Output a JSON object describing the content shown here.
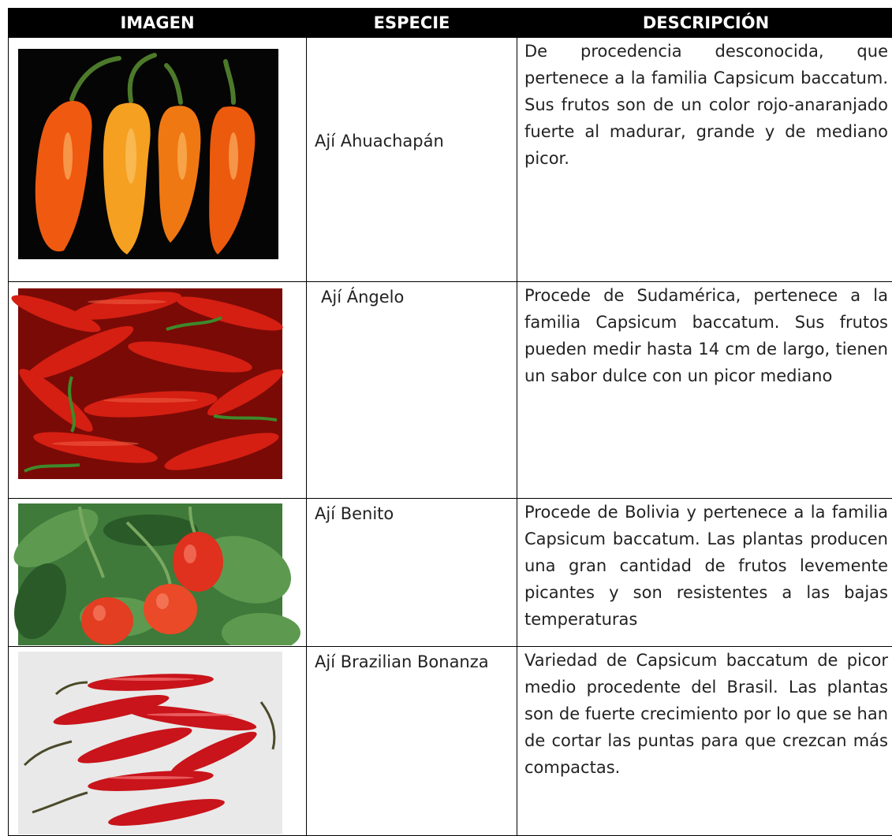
{
  "table": {
    "header": [
      "IMAGEN",
      "ESPECIE",
      "DESCRIPCIÓN"
    ],
    "rows": [
      {
        "species": "Ají Ahuachapán",
        "description": "De procedencia desconocida, que pertenece a la familia Capsicum baccatum. Sus frutos son de un color rojo-anaranjado fuerte al madurar, grande y de mediano picor."
      },
      {
        "species": "Ají Ángelo",
        "description": "Procede de Sudamérica, pertenece a la familia Capsicum baccatum. Sus frutos pueden medir hasta 14 cm de largo, tienen un sabor dulce con un picor mediano"
      },
      {
        "species": "Ají Benito",
        "description": "Procede de Bolivia y pertenece a la familia Capsicum baccatum. Las plantas producen una gran cantidad de frutos levemente picantes y son resistentes a las bajas temperaturas"
      },
      {
        "species": "Ají Brazilian Bonanza",
        "description": "Variedad de Capsicum baccatum de picor medio procedente del Brasil. Las plantas son de fuerte crecimiento por lo que se han de cortar las puntas para que crezcan más compactas."
      }
    ]
  }
}
